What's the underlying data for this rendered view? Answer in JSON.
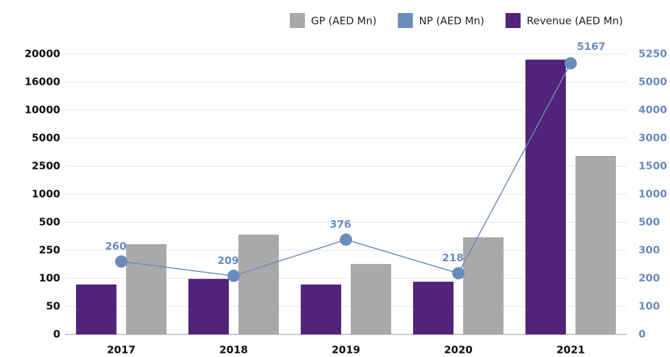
{
  "chart_data": {
    "type": "bar",
    "categories": [
      "2017",
      "2018",
      "2019",
      "2020",
      "2021"
    ],
    "series": [
      {
        "name": "Revenue (AED Mn)",
        "color": "#52237a",
        "values": [
          89,
          99,
          89,
          94,
          19200
        ]
      },
      {
        "name": "GP (AED Mn)",
        "color": "#a9a9a9",
        "values": [
          305,
          390,
          177,
          366,
          3415
        ]
      },
      {
        "name": "NP (AED Mn)",
        "color": "#6a8cbd",
        "type": "line",
        "axis": "y2",
        "values": [
          260,
          209,
          376,
          218,
          5167
        ]
      }
    ],
    "legend_order": [
      "GP (AED Mn)",
      "NP (AED Mn)",
      "Revenue (AED Mn)"
    ],
    "ylim": [
      0,
      20000
    ],
    "yticks": [
      0,
      50,
      100,
      250,
      500,
      1000,
      2500,
      5000,
      10000,
      16000,
      20000
    ],
    "y2lim": [
      0,
      5250
    ],
    "y2ticks": [
      0,
      100,
      200,
      300,
      500,
      1000,
      1500,
      3000,
      4000,
      5000,
      5250
    ],
    "grid": true,
    "legend": "top right"
  }
}
